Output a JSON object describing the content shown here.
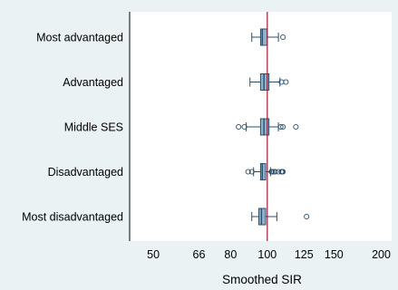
{
  "chart_data": {
    "type": "boxplot",
    "orientation": "horizontal",
    "x_scale": "log",
    "xlabel": "Smoothed SIR",
    "xlim": [
      45,
      205
    ],
    "xticks": [
      50,
      66,
      80,
      100,
      125,
      150,
      200
    ],
    "xtick_labels": [
      "50",
      "66",
      "80",
      "100",
      "125",
      "150",
      "200"
    ],
    "reference_line": 100,
    "categories": [
      "Most advantaged",
      "Advantaged",
      "Middle SES",
      "Disadvantaged",
      "Most disadvantaged"
    ],
    "boxes": [
      {
        "label": "Most advantaged",
        "whisker_low": 91,
        "q1": 96,
        "median": 97,
        "q3": 100,
        "whisker_high": 107,
        "outliers": [
          110
        ]
      },
      {
        "label": "Advantaged",
        "whisker_low": 90,
        "q1": 96,
        "median": 98,
        "q3": 101,
        "whisker_high": 108,
        "outliers": [
          109,
          112
        ]
      },
      {
        "label": "Middle SES",
        "whisker_low": 88,
        "q1": 96,
        "median": 98,
        "q3": 101,
        "whisker_high": 107,
        "outliers": [
          84,
          87,
          108.5,
          110,
          119
        ]
      },
      {
        "label": "Disadvantaged",
        "whisker_low": 92,
        "q1": 96,
        "median": 97,
        "q3": 99,
        "whisker_high": 102,
        "outliers": [
          89,
          91,
          102.5,
          103,
          104,
          105,
          107,
          109,
          109.5,
          110
        ]
      },
      {
        "label": "Most disadvantaged",
        "whisker_low": 91,
        "q1": 95,
        "median": 96.5,
        "q3": 99,
        "whisker_high": 106,
        "outliers": [
          127
        ]
      }
    ],
    "colors": {
      "background": "#eaf2f3",
      "plot_background": "#ffffff",
      "box_fill": "#8cb3cd",
      "box_stroke": "#2b4f6b",
      "reference_line": "#9b1c35"
    }
  }
}
